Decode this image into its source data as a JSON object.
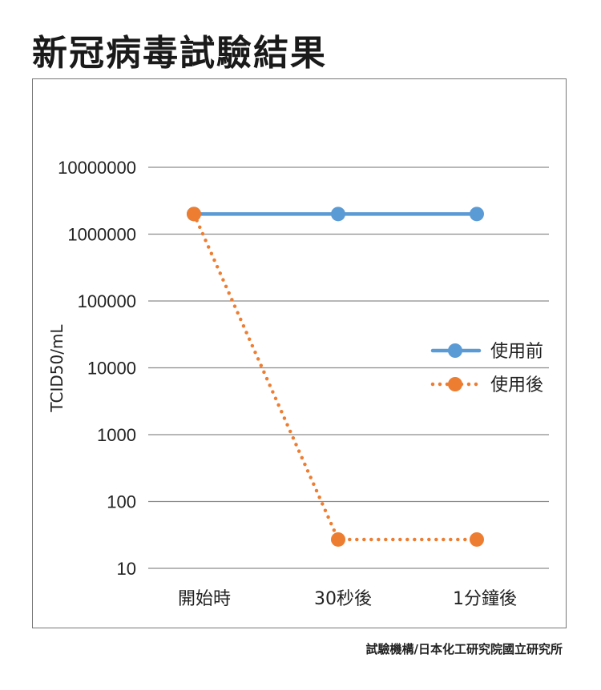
{
  "title": "新冠病毒試驗結果",
  "source": "試驗機構/日本化工研究院國立研究所",
  "chart_data": {
    "type": "line",
    "title": "新冠病毒試驗結果",
    "xlabel": "",
    "ylabel": "TCID50/mL",
    "yscale": "log",
    "ylim": [
      10,
      10000000
    ],
    "yticks": [
      "10000000",
      "1000000",
      "100000",
      "10000",
      "1000",
      "100",
      "10"
    ],
    "ytick_values": [
      10000000,
      1000000,
      100000,
      10000,
      1000,
      100,
      10
    ],
    "categories": [
      "開始時",
      "30秒後",
      "1分鐘後"
    ],
    "grid": true,
    "legend_position": "right",
    "series": [
      {
        "name": "使用前",
        "values": [
          2000000,
          2000000,
          2000000
        ],
        "color": "#5b9bd5",
        "style": "solid"
      },
      {
        "name": "使用後",
        "values": [
          2000000,
          27,
          27
        ],
        "color": "#ed7d31",
        "style": "dotted"
      }
    ]
  }
}
